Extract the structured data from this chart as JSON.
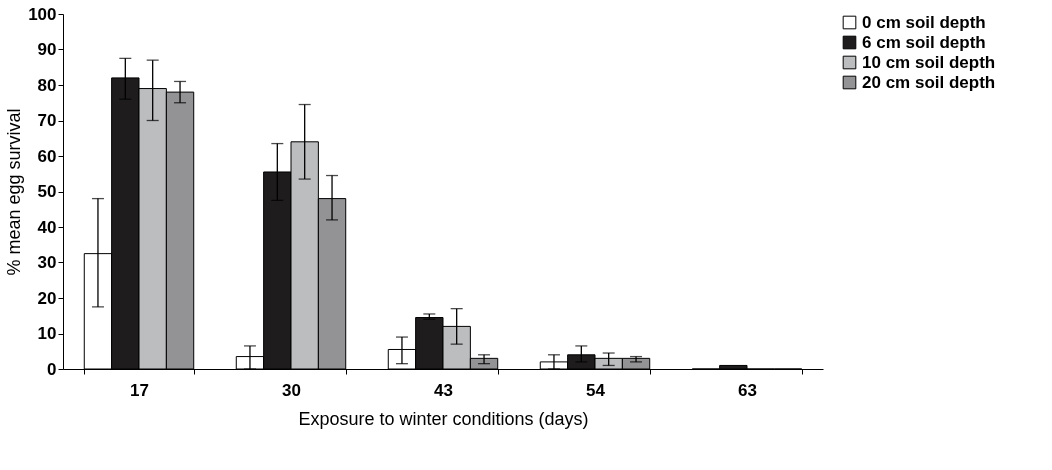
{
  "chart_data": {
    "type": "bar",
    "xlabel": "Exposure to winter conditions (days)",
    "ylabel": "% mean egg survival",
    "categories": [
      "17",
      "30",
      "43",
      "54",
      "63"
    ],
    "series": [
      {
        "name": "0 cm soil depth",
        "color": "#ffffff",
        "values": [
          32.5,
          3.5,
          5.5,
          2,
          0
        ],
        "errors": [
          [
            17.5,
            48
          ],
          [
            0,
            6.5
          ],
          [
            1.5,
            9
          ],
          [
            0,
            4
          ],
          null
        ]
      },
      {
        "name": "6 cm soil depth",
        "color": "#1e1c1d",
        "values": [
          82,
          55.5,
          14.5,
          4,
          1
        ],
        "errors": [
          [
            76,
            87.5
          ],
          [
            47.5,
            63.5
          ],
          [
            14,
            15.5
          ],
          [
            2,
            6.5
          ],
          null
        ]
      },
      {
        "name": "10 cm soil depth",
        "color": "#bcbdbf",
        "values": [
          79,
          64,
          12,
          3,
          0
        ],
        "errors": [
          [
            70,
            87
          ],
          [
            53.5,
            74.5
          ],
          [
            7,
            17
          ],
          [
            1,
            4.5
          ],
          null
        ]
      },
      {
        "name": "20 cm soil depth",
        "color": "#939396",
        "values": [
          78,
          48,
          3,
          3,
          0
        ],
        "errors": [
          [
            75,
            81
          ],
          [
            42,
            54.5
          ],
          [
            1.5,
            4
          ],
          [
            2,
            3.5
          ],
          null
        ]
      }
    ],
    "ylim": [
      0,
      100
    ],
    "yticks": [
      0,
      10,
      20,
      30,
      40,
      50,
      60,
      70,
      80,
      90,
      100
    ],
    "legend": "top right",
    "grid": false
  }
}
